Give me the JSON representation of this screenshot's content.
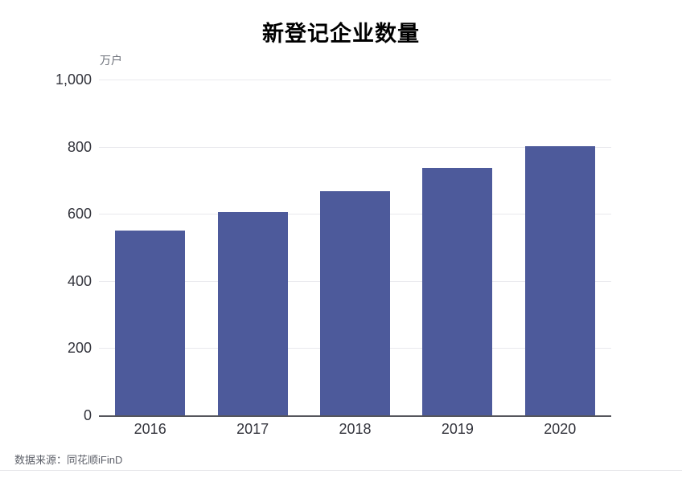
{
  "chart": {
    "title": "新登记企业数量",
    "unit_label": "万户",
    "source": "数据来源：同花顺iFinD",
    "colors": {
      "bar": "#4d5a9b",
      "grid": "#e9e9ed",
      "axis": "#55565c",
      "tick_label": "#33343c",
      "muted_text": "#6b6f78"
    }
  },
  "chart_data": {
    "type": "bar",
    "title": "新登记企业数量",
    "categories": [
      "2016",
      "2017",
      "2018",
      "2019",
      "2020"
    ],
    "values": [
      553,
      607,
      670,
      739,
      803
    ],
    "xlabel": "",
    "ylabel": "万户",
    "ylim": [
      0,
      1000
    ],
    "yticks": [
      0,
      200,
      400,
      600,
      800,
      1000
    ],
    "ytick_labels": [
      "0",
      "200",
      "400",
      "600",
      "800",
      "1,000"
    ],
    "grid": true,
    "legend": false
  }
}
